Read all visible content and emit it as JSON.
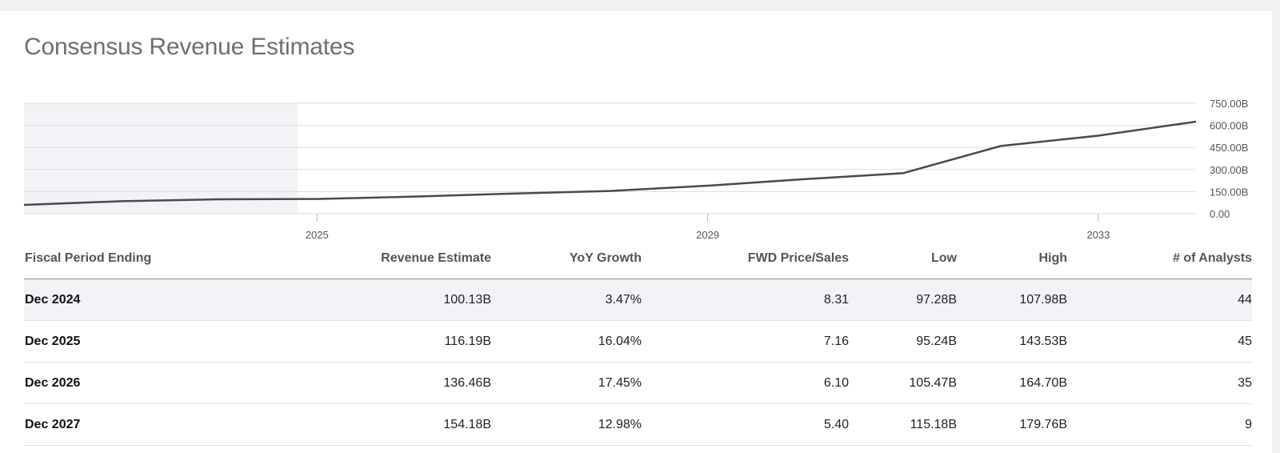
{
  "page": {
    "title": "Consensus Revenue Estimates"
  },
  "chart_data": {
    "type": "line",
    "title": "",
    "xlabel": "",
    "ylabel": "",
    "x_tick_labels": [
      "2025",
      "2029",
      "2033"
    ],
    "x_ticks": [
      2025,
      2029,
      2033
    ],
    "xlim": [
      2022,
      2034
    ],
    "y_tick_labels": [
      "750.00B",
      "600.00B",
      "450.00B",
      "300.00B",
      "150.00B",
      "0.00"
    ],
    "y_ticks": [
      750,
      600,
      450,
      300,
      150,
      0
    ],
    "ylim": [
      0,
      750
    ],
    "y_axis_position": "right",
    "grid": true,
    "shaded_region": {
      "x_start": 2022,
      "x_end": 2024.8,
      "meaning": "actuals"
    },
    "series": [
      {
        "x": [
          2022,
          2023,
          2024,
          2025,
          2026,
          2027,
          2028,
          2029,
          2030,
          2031,
          2032,
          2033,
          2034
        ],
        "values": [
          60,
          85,
          98,
          100.13,
          116.19,
          136.46,
          154.18,
          190,
          235,
          275,
          460,
          530,
          625
        ]
      }
    ],
    "colors": {
      "line": "#4a4a4a",
      "shade": "#f2f3f6",
      "grid": "#dddddd"
    }
  },
  "table": {
    "headers": [
      "Fiscal Period Ending",
      "Revenue Estimate",
      "YoY Growth",
      "FWD Price/Sales",
      "Low",
      "High",
      "# of Analysts"
    ],
    "rows": [
      [
        "Dec 2024",
        "100.13B",
        "3.47%",
        "8.31",
        "97.28B",
        "107.98B",
        "44"
      ],
      [
        "Dec 2025",
        "116.19B",
        "16.04%",
        "7.16",
        "95.24B",
        "143.53B",
        "45"
      ],
      [
        "Dec 2026",
        "136.46B",
        "17.45%",
        "6.10",
        "105.47B",
        "164.70B",
        "35"
      ],
      [
        "Dec 2027",
        "154.18B",
        "12.98%",
        "5.40",
        "115.18B",
        "179.76B",
        "9"
      ]
    ]
  }
}
